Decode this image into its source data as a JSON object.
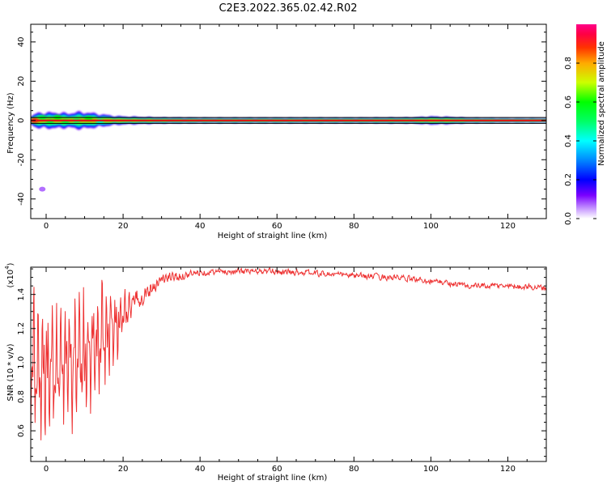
{
  "title": "C2E3.2022.365.02.42.R02",
  "colors": {
    "background": "#ffffff",
    "axis": "#000000",
    "snr_line": "#ee3333",
    "ridge": "#dd1111",
    "grid_line": "#000000"
  },
  "chart_data": [
    {
      "type": "heatmap",
      "xlabel": "Height of straight line (km)",
      "ylabel": "Frequency (Hz)",
      "xlim": [
        -4,
        130
      ],
      "ylim": [
        -50,
        49
      ],
      "xticks": [
        0,
        20,
        40,
        60,
        80,
        100,
        120
      ],
      "yticks": [
        -40,
        -20,
        0,
        20,
        40
      ],
      "colorbar": {
        "label": "Normalized spectral amplitude",
        "range": [
          0,
          1
        ],
        "ticks": [
          "0.0",
          "0.2",
          "0.4",
          "0.6",
          "0.8"
        ],
        "tick_values": [
          0.0,
          0.2,
          0.4,
          0.6,
          0.8
        ]
      },
      "reference_lines_hz": [
        -1.5,
        1.5
      ],
      "ridge_frequency_hz": 0,
      "amplitude_profile": {
        "heights_km": [
          -4,
          -2,
          0,
          2,
          4,
          6,
          8,
          10,
          12,
          14,
          16,
          18,
          20,
          25,
          30,
          40,
          60,
          80,
          95,
          100,
          105,
          110,
          120,
          130
        ],
        "spread_hz": [
          1.5,
          4,
          3.5,
          4,
          3.5,
          3.5,
          4,
          4,
          3.5,
          3,
          2.5,
          2,
          1.8,
          1.5,
          1.2,
          1.0,
          1.0,
          1.0,
          1.2,
          1.8,
          1.5,
          1.0,
          0.8,
          0.8
        ]
      },
      "hotspots": [
        {
          "height_km": -3,
          "freq_hz": 0,
          "amplitude": 0.9
        },
        {
          "height_km": -1,
          "freq_hz": 1.5,
          "amplitude": 0.55
        },
        {
          "height_km": 1,
          "freq_hz": -0.5,
          "amplitude": 0.55
        },
        {
          "height_km": 3,
          "freq_hz": 1.5,
          "amplitude": 0.6
        },
        {
          "height_km": 5,
          "freq_hz": -0.5,
          "amplitude": 0.55
        },
        {
          "height_km": 8,
          "freq_hz": 0,
          "amplitude": 0.5
        },
        {
          "height_km": 11,
          "freq_hz": 1,
          "amplitude": 0.6
        },
        {
          "height_km": 14,
          "freq_hz": -0.5,
          "amplitude": 0.45
        }
      ],
      "faint_patch": {
        "height_km": -1,
        "freq_hz": -35,
        "amplitude": 0.08
      }
    },
    {
      "type": "line",
      "xlabel": "Height of straight line (km)",
      "ylabel": "SNR (10 * v/v)",
      "y_multiplier": "(x10",
      "y_multiplier_exp": "4",
      "y_multiplier_close": ")",
      "xlim": [
        -4,
        130
      ],
      "ylim": [
        0.42,
        1.56
      ],
      "xticks": [
        0,
        20,
        40,
        60,
        80,
        100,
        120
      ],
      "yticks": [
        0.6,
        0.8,
        1.0,
        1.2,
        1.4
      ],
      "ytick_labels": [
        "0.6",
        "0.8",
        "1.0",
        "1.2",
        "1.4"
      ],
      "envelope": {
        "x": [
          -4,
          0,
          5,
          10,
          15,
          20,
          25,
          30,
          35,
          40,
          50,
          60,
          70,
          80,
          90,
          100,
          110,
          120,
          130
        ],
        "y": [
          1.0,
          0.95,
          1.0,
          1.05,
          1.15,
          1.27,
          1.4,
          1.49,
          1.51,
          1.53,
          1.535,
          1.535,
          1.525,
          1.51,
          1.5,
          1.48,
          1.45,
          1.45,
          1.44
        ]
      },
      "noise": {
        "x": [
          -4,
          15,
          22,
          30,
          40,
          130
        ],
        "amplitude": [
          0.45,
          0.35,
          0.1,
          0.05,
          0.025,
          0.025
        ]
      }
    }
  ]
}
